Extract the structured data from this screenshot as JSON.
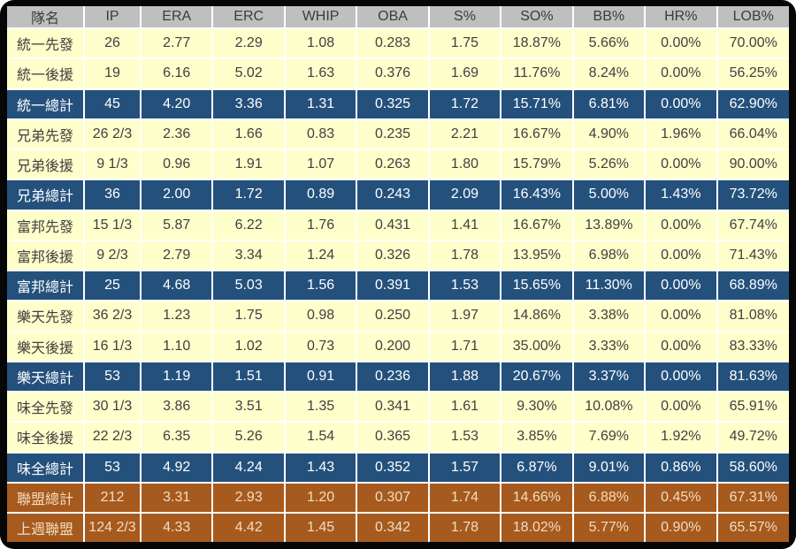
{
  "chart_data": {
    "type": "table",
    "title": "",
    "columns": [
      "隊名",
      "IP",
      "ERA",
      "ERC",
      "WHIP",
      "OBA",
      "S%",
      "SO%",
      "BB%",
      "HR%",
      "LOB%"
    ],
    "rows": [
      {
        "style": "normal",
        "cells": [
          "統一先發",
          "26",
          "2.77",
          "2.29",
          "1.08",
          "0.283",
          "1.75",
          "18.87%",
          "5.66%",
          "0.00%",
          "70.00%"
        ]
      },
      {
        "style": "normal",
        "cells": [
          "統一後援",
          "19",
          "6.16",
          "5.02",
          "1.63",
          "0.376",
          "1.69",
          "11.76%",
          "8.24%",
          "0.00%",
          "56.25%"
        ]
      },
      {
        "style": "team-total",
        "cells": [
          "統一總計",
          "45",
          "4.20",
          "3.36",
          "1.31",
          "0.325",
          "1.72",
          "15.71%",
          "6.81%",
          "0.00%",
          "62.90%"
        ]
      },
      {
        "style": "normal",
        "cells": [
          "兄弟先發",
          "26 2/3",
          "2.36",
          "1.66",
          "0.83",
          "0.235",
          "2.21",
          "16.67%",
          "4.90%",
          "1.96%",
          "66.04%"
        ]
      },
      {
        "style": "normal",
        "cells": [
          "兄弟後援",
          "9 1/3",
          "0.96",
          "1.91",
          "1.07",
          "0.263",
          "1.80",
          "15.79%",
          "5.26%",
          "0.00%",
          "90.00%"
        ]
      },
      {
        "style": "team-total",
        "cells": [
          "兄弟總計",
          "36",
          "2.00",
          "1.72",
          "0.89",
          "0.243",
          "2.09",
          "16.43%",
          "5.00%",
          "1.43%",
          "73.72%"
        ]
      },
      {
        "style": "normal",
        "cells": [
          "富邦先發",
          "15 1/3",
          "5.87",
          "6.22",
          "1.76",
          "0.431",
          "1.41",
          "16.67%",
          "13.89%",
          "0.00%",
          "67.74%"
        ]
      },
      {
        "style": "normal",
        "cells": [
          "富邦後援",
          "9 2/3",
          "2.79",
          "3.34",
          "1.24",
          "0.326",
          "1.78",
          "13.95%",
          "6.98%",
          "0.00%",
          "71.43%"
        ]
      },
      {
        "style": "team-total",
        "cells": [
          "富邦總計",
          "25",
          "4.68",
          "5.03",
          "1.56",
          "0.391",
          "1.53",
          "15.65%",
          "11.30%",
          "0.00%",
          "68.89%"
        ]
      },
      {
        "style": "normal",
        "cells": [
          "樂天先發",
          "36 2/3",
          "1.23",
          "1.75",
          "0.98",
          "0.250",
          "1.97",
          "14.86%",
          "3.38%",
          "0.00%",
          "81.08%"
        ]
      },
      {
        "style": "normal",
        "cells": [
          "樂天後援",
          "16 1/3",
          "1.10",
          "1.02",
          "0.73",
          "0.200",
          "1.71",
          "35.00%",
          "3.33%",
          "0.00%",
          "83.33%"
        ]
      },
      {
        "style": "team-total",
        "cells": [
          "樂天總計",
          "53",
          "1.19",
          "1.51",
          "0.91",
          "0.236",
          "1.88",
          "20.67%",
          "3.37%",
          "0.00%",
          "81.63%"
        ]
      },
      {
        "style": "normal",
        "cells": [
          "味全先發",
          "30 1/3",
          "3.86",
          "3.51",
          "1.35",
          "0.341",
          "1.61",
          "9.30%",
          "10.08%",
          "0.00%",
          "65.91%"
        ]
      },
      {
        "style": "normal",
        "cells": [
          "味全後援",
          "22 2/3",
          "6.35",
          "5.26",
          "1.54",
          "0.365",
          "1.53",
          "3.85%",
          "7.69%",
          "1.92%",
          "49.72%"
        ]
      },
      {
        "style": "team-total",
        "cells": [
          "味全總計",
          "53",
          "4.92",
          "4.24",
          "1.43",
          "0.352",
          "1.57",
          "6.87%",
          "9.01%",
          "0.86%",
          "58.60%"
        ]
      },
      {
        "style": "league-total",
        "cells": [
          "聯盟總計",
          "212",
          "3.31",
          "2.93",
          "1.20",
          "0.307",
          "1.74",
          "14.66%",
          "6.88%",
          "0.45%",
          "67.31%"
        ]
      },
      {
        "style": "league-total",
        "cells": [
          "上週聯盟",
          "124 2/3",
          "4.33",
          "4.42",
          "1.45",
          "0.342",
          "1.78",
          "18.02%",
          "5.77%",
          "0.90%",
          "65.57%"
        ]
      }
    ],
    "layout": {
      "header_row": true,
      "grid": "white 2px separators between cells",
      "legend_position": "none"
    }
  },
  "colors": {
    "frame": "#060606",
    "grid": "#ffffff",
    "header_bg": "#bfbfbf",
    "header_text": "#3c3c3c",
    "row_bg": "#ffffcc",
    "row_text": "#3f3f3f",
    "team_total_bg": "#24517c",
    "team_total_text": "#ffffff",
    "league_total_bg": "#a65a1e",
    "league_total_text": "#f2dcc0"
  }
}
